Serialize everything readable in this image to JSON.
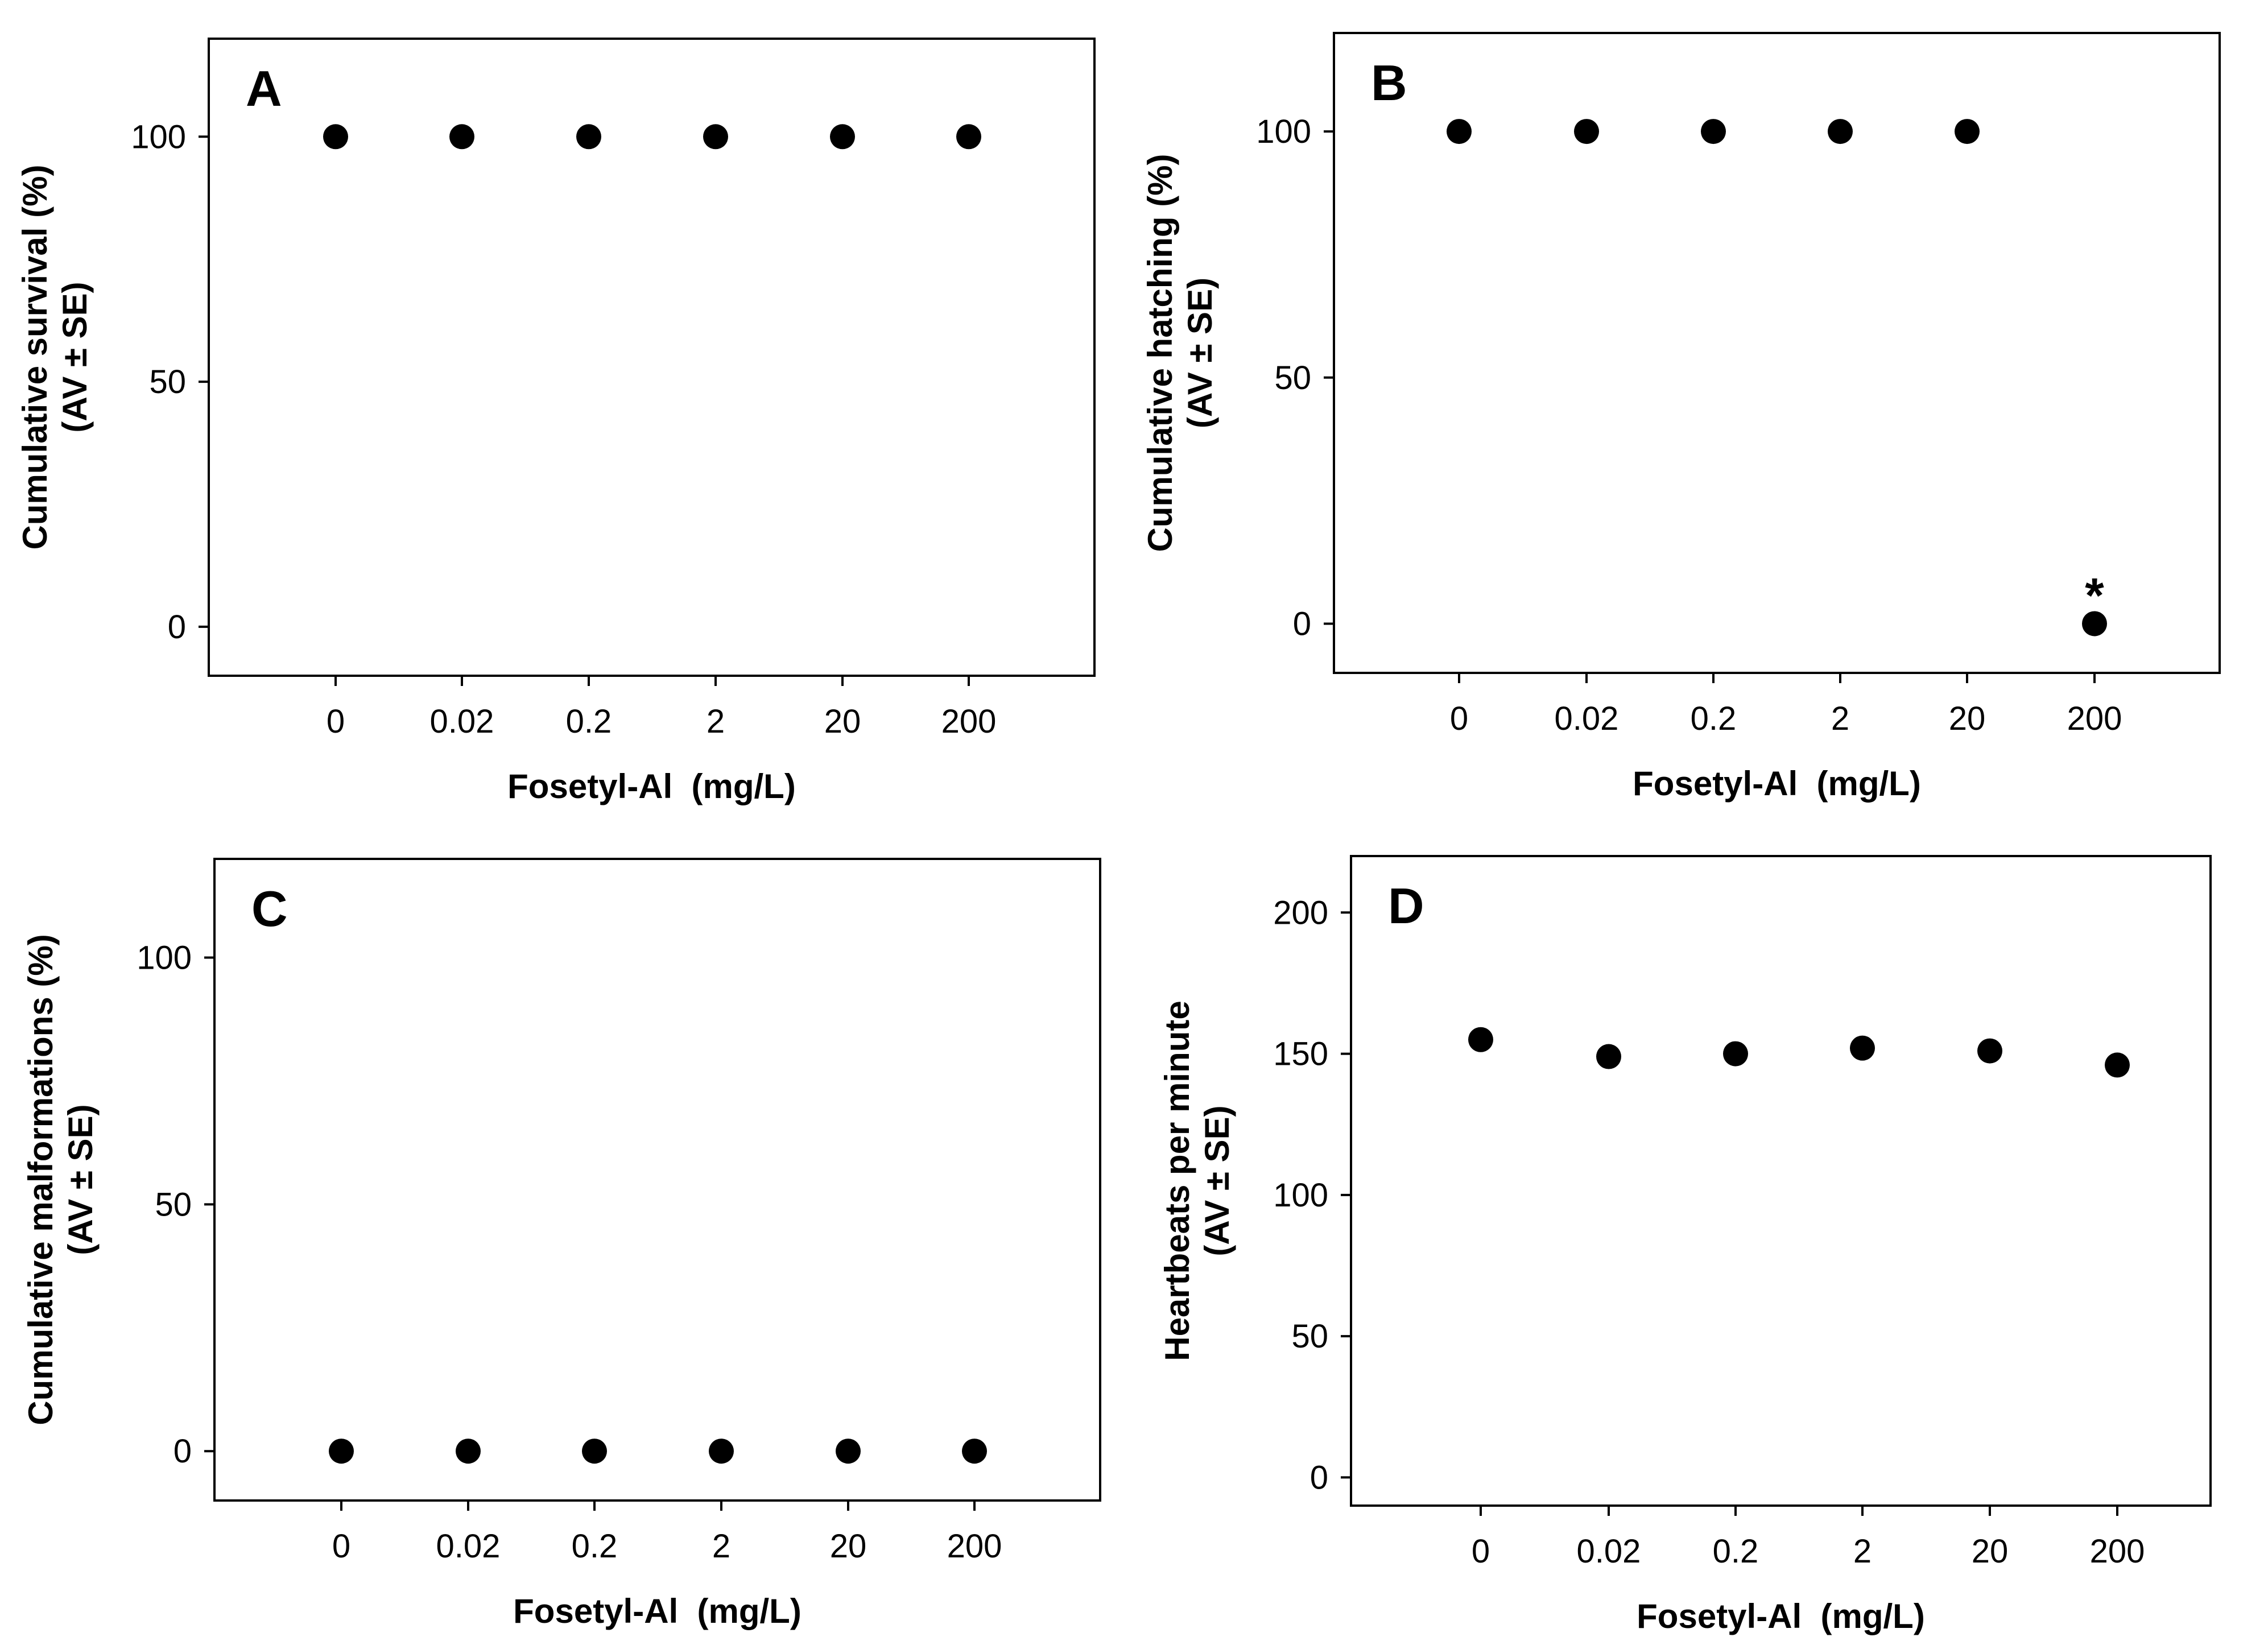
{
  "figure": {
    "shared": {
      "xlabel": "Fosetyl-Al  (mg/L)",
      "categories": [
        "0",
        "0.02",
        "0.2",
        "2",
        "20",
        "200"
      ]
    }
  },
  "chart_data": [
    {
      "type": "scatter",
      "panel": "A",
      "title": "A",
      "xlabel": "Fosetyl-Al  (mg/L)",
      "ylabel_line1": "Cumulative survival (%)",
      "ylabel_line2": "(AV ± SE)",
      "categories": [
        "0",
        "0.02",
        "0.2",
        "2",
        "20",
        "200"
      ],
      "values": [
        100,
        100,
        100,
        100,
        100,
        100
      ],
      "yticks": [
        0,
        50,
        100
      ],
      "ylim": [
        -10,
        120
      ],
      "annotations": []
    },
    {
      "type": "scatter",
      "panel": "B",
      "title": "B",
      "xlabel": "Fosetyl-Al  (mg/L)",
      "ylabel_line1": "Cumulative hatching (%)",
      "ylabel_line2": "(AV ± SE)",
      "categories": [
        "0",
        "0.02",
        "0.2",
        "2",
        "20",
        "200"
      ],
      "values": [
        100,
        100,
        100,
        100,
        100,
        0
      ],
      "yticks": [
        0,
        50,
        100
      ],
      "ylim": [
        -10,
        120
      ],
      "annotations": [
        {
          "category": "200",
          "text": "*"
        }
      ]
    },
    {
      "type": "scatter",
      "panel": "C",
      "title": "C",
      "xlabel": "Fosetyl-Al  (mg/L)",
      "ylabel_line1": "Cumulative malformations (%)",
      "ylabel_line2": "(AV ± SE)",
      "categories": [
        "0",
        "0.02",
        "0.2",
        "2",
        "20",
        "200"
      ],
      "values": [
        0,
        0,
        0,
        0,
        0,
        0
      ],
      "yticks": [
        0,
        50,
        100
      ],
      "ylim": [
        -10,
        120
      ],
      "annotations": []
    },
    {
      "type": "scatter",
      "panel": "D",
      "title": "D",
      "xlabel": "Fosetyl-Al  (mg/L)",
      "ylabel_line1": "Heartbeats per minute",
      "ylabel_line2": "(AV ± SE)",
      "categories": [
        "0",
        "0.02",
        "0.2",
        "2",
        "20",
        "200"
      ],
      "values": [
        155,
        149,
        150,
        152,
        151,
        146
      ],
      "yticks": [
        0,
        50,
        100,
        150,
        200
      ],
      "ylim": [
        -10,
        220
      ],
      "annotations": []
    }
  ]
}
